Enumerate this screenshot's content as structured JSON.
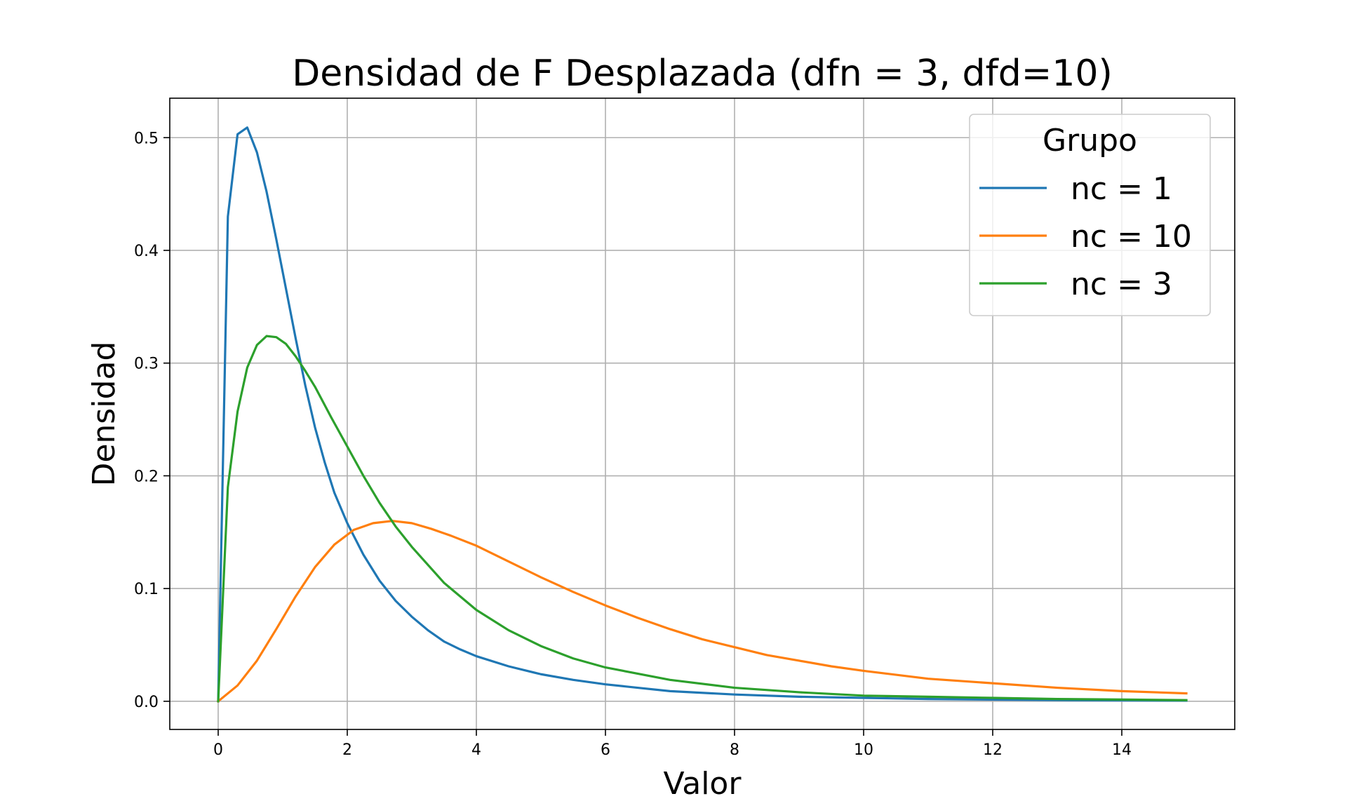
{
  "chart_data": {
    "type": "line",
    "title": "Densidad de F Desplazada (dfn = 3, dfd=10)",
    "xlabel": "Valor",
    "ylabel": "Densidad",
    "xlim": [
      -0.75,
      15.75
    ],
    "ylim": [
      -0.025,
      0.535
    ],
    "xticks": [
      0,
      2,
      4,
      6,
      8,
      10,
      12,
      14
    ],
    "yticks": [
      0.0,
      0.1,
      0.2,
      0.3,
      0.4,
      0.5
    ],
    "xtick_labels": [
      "0",
      "2",
      "4",
      "6",
      "8",
      "10",
      "12",
      "14"
    ],
    "ytick_labels": [
      "0.0",
      "0.1",
      "0.2",
      "0.3",
      "0.4",
      "0.5"
    ],
    "grid": true,
    "legend": {
      "title": "Grupo",
      "placement": "upper right"
    },
    "series": [
      {
        "name": "nc = 1",
        "color": "#1f77b4",
        "x": [
          0,
          0.15,
          0.3,
          0.45,
          0.6,
          0.75,
          0.9,
          1.05,
          1.2,
          1.35,
          1.5,
          1.65,
          1.8,
          2.0,
          2.25,
          2.5,
          2.75,
          3.0,
          3.25,
          3.5,
          3.75,
          4.0,
          4.5,
          5.0,
          5.5,
          6.0,
          6.5,
          7.0,
          8.0,
          9.0,
          10.0,
          11.0,
          12.0,
          13.0,
          14.0,
          15.0
        ],
        "y": [
          0.0,
          0.43,
          0.503,
          0.509,
          0.487,
          0.452,
          0.41,
          0.366,
          0.322,
          0.28,
          0.243,
          0.212,
          0.185,
          0.158,
          0.13,
          0.107,
          0.089,
          0.075,
          0.063,
          0.053,
          0.046,
          0.04,
          0.031,
          0.024,
          0.019,
          0.015,
          0.012,
          0.009,
          0.006,
          0.004,
          0.003,
          0.002,
          0.0015,
          0.001,
          0.0008,
          0.0006
        ]
      },
      {
        "name": "nc = 10",
        "color": "#ff7f0e",
        "x": [
          0,
          0.3,
          0.6,
          0.9,
          1.2,
          1.5,
          1.8,
          2.1,
          2.4,
          2.7,
          3.0,
          3.3,
          3.6,
          4.0,
          4.5,
          5.0,
          5.5,
          6.0,
          6.5,
          7.0,
          7.5,
          8.0,
          8.5,
          9.0,
          9.5,
          10.0,
          11.0,
          12.0,
          13.0,
          14.0,
          15.0
        ],
        "y": [
          0.0,
          0.014,
          0.036,
          0.064,
          0.093,
          0.119,
          0.139,
          0.152,
          0.158,
          0.16,
          0.158,
          0.153,
          0.147,
          0.138,
          0.124,
          0.11,
          0.097,
          0.085,
          0.074,
          0.064,
          0.055,
          0.048,
          0.041,
          0.036,
          0.031,
          0.027,
          0.02,
          0.016,
          0.012,
          0.009,
          0.007
        ]
      },
      {
        "name": "nc = 3",
        "color": "#2ca02c",
        "x": [
          0,
          0.15,
          0.3,
          0.45,
          0.6,
          0.75,
          0.9,
          1.05,
          1.2,
          1.35,
          1.5,
          1.75,
          2.0,
          2.25,
          2.5,
          2.75,
          3.0,
          3.5,
          4.0,
          4.5,
          5.0,
          5.5,
          6.0,
          7.0,
          8.0,
          9.0,
          10.0,
          11.0,
          12.0,
          13.0,
          14.0,
          15.0
        ],
        "y": [
          0.0,
          0.19,
          0.257,
          0.296,
          0.316,
          0.324,
          0.323,
          0.317,
          0.306,
          0.293,
          0.279,
          0.252,
          0.226,
          0.2,
          0.176,
          0.155,
          0.137,
          0.105,
          0.081,
          0.063,
          0.049,
          0.038,
          0.03,
          0.019,
          0.012,
          0.008,
          0.005,
          0.004,
          0.003,
          0.002,
          0.0015,
          0.001
        ]
      }
    ]
  }
}
